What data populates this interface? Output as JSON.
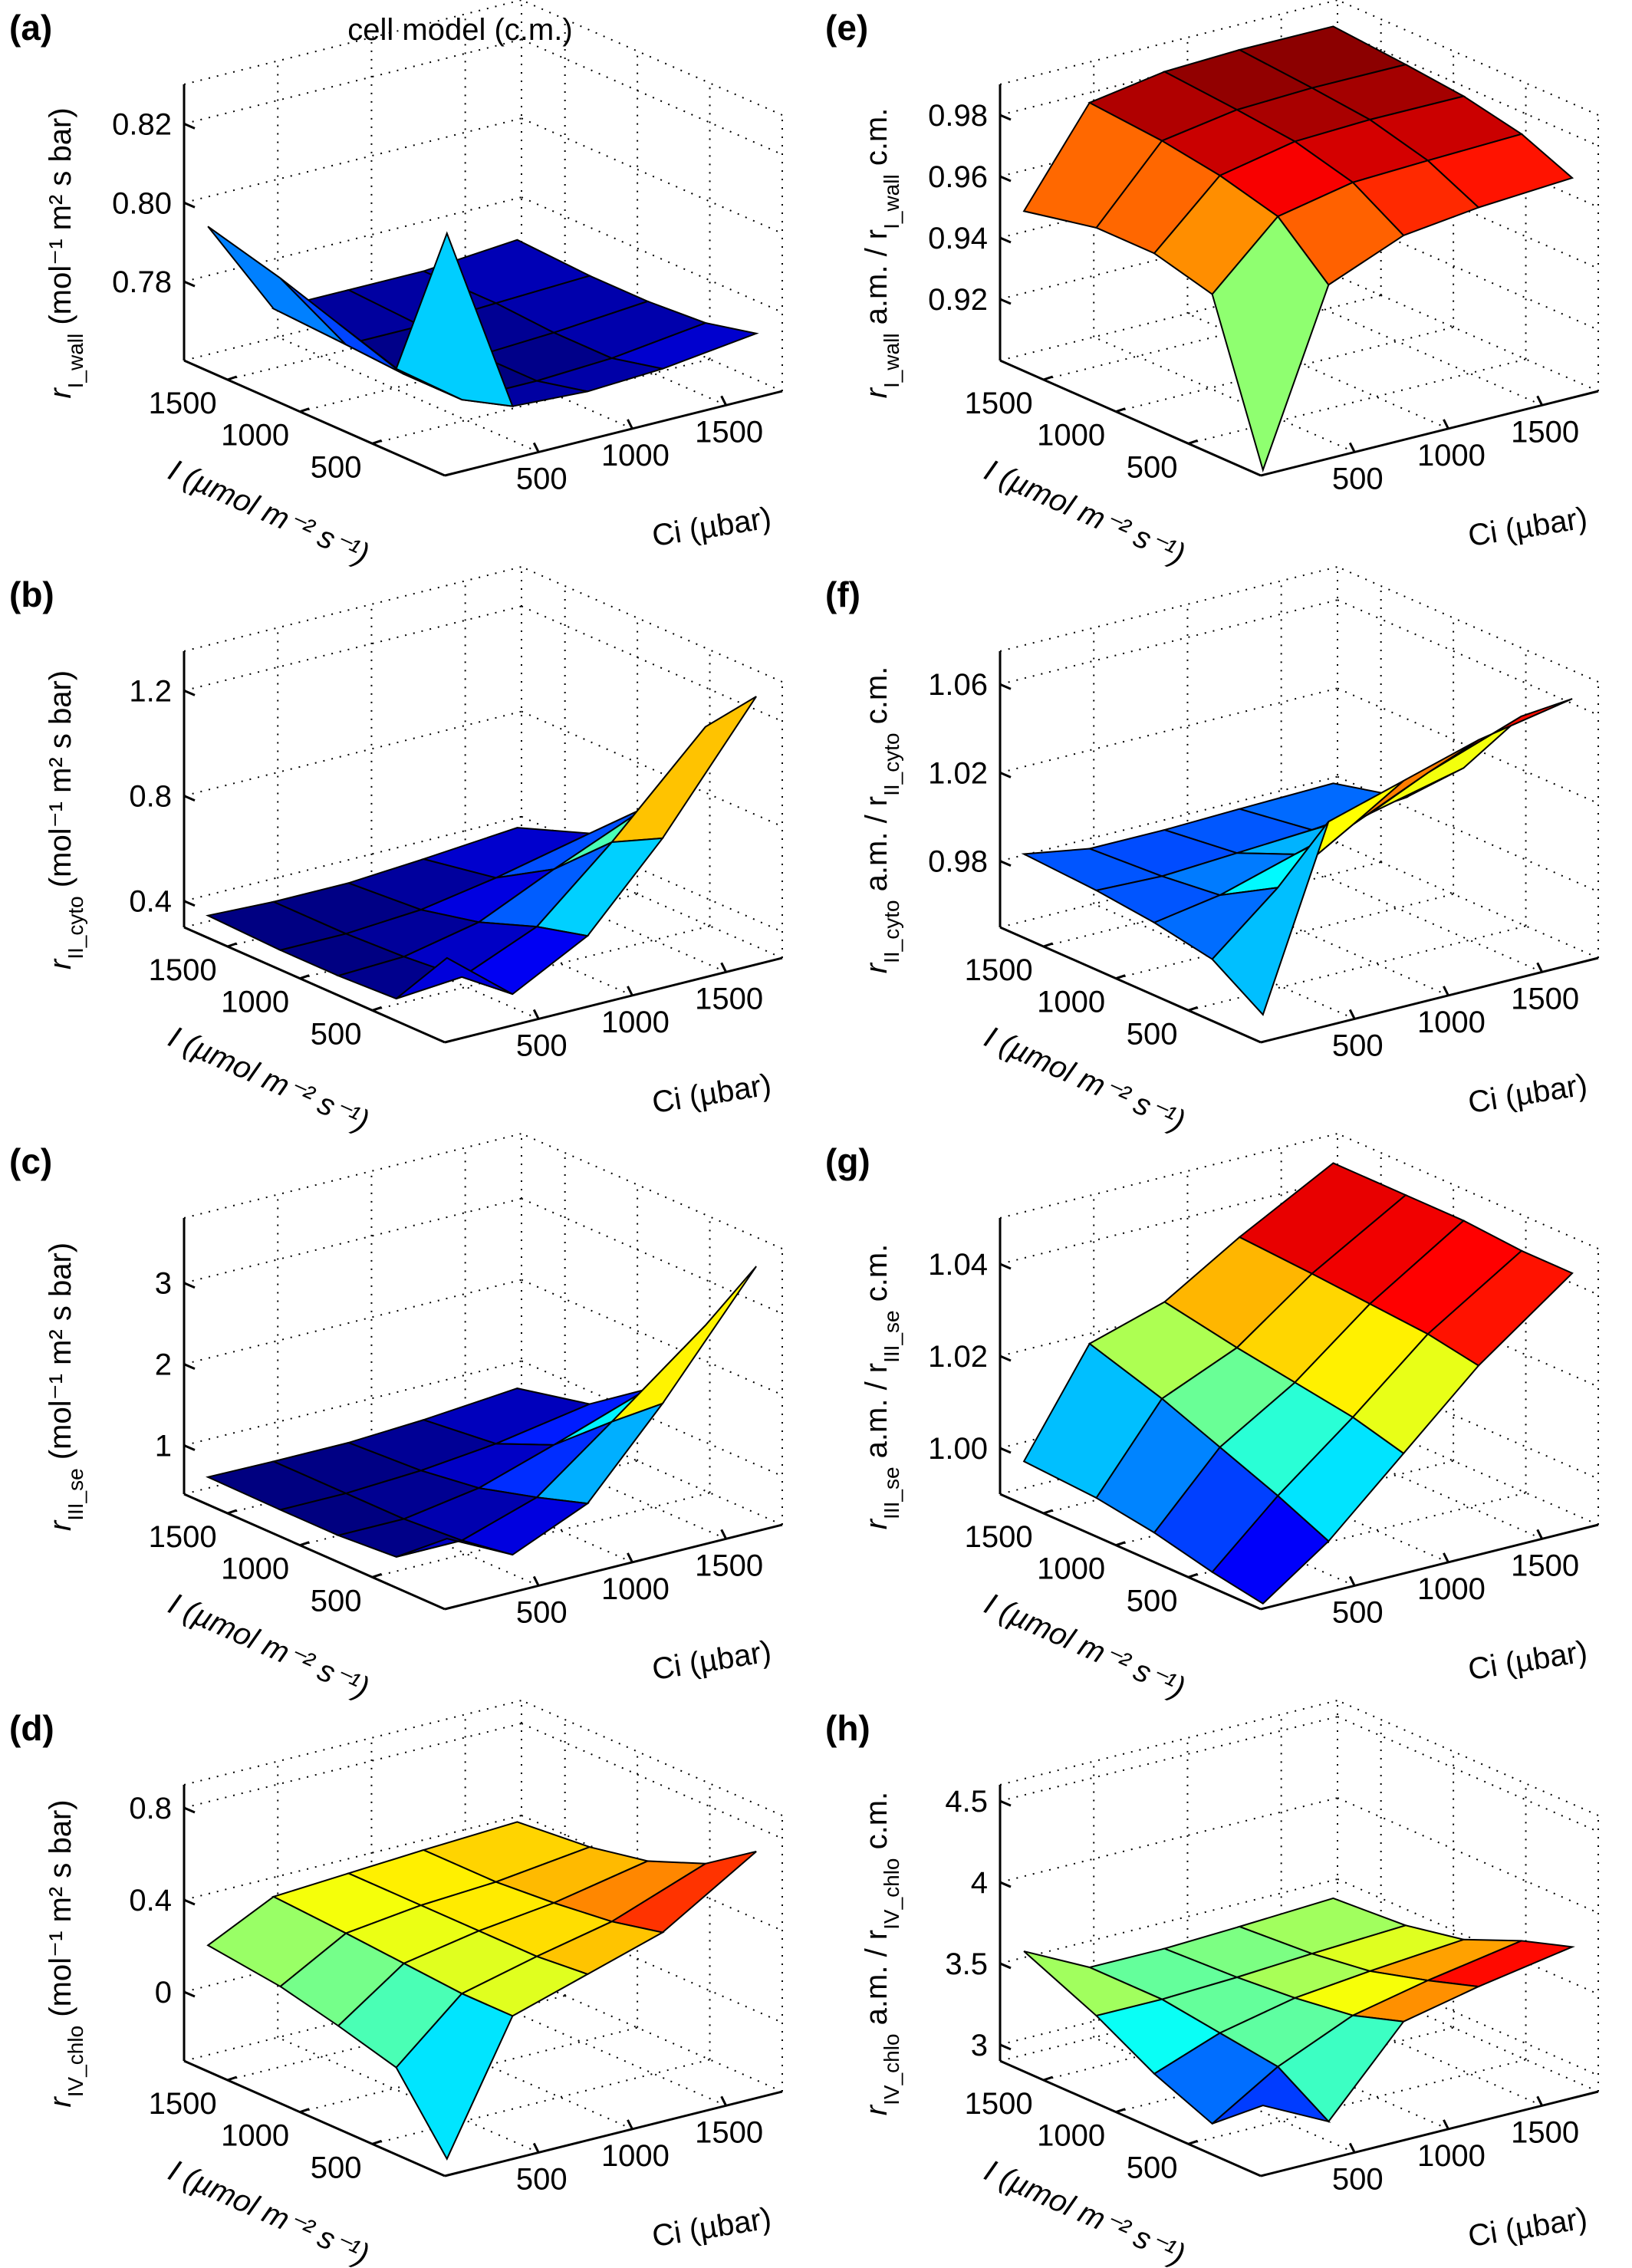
{
  "chart_data": [
    {
      "type": "surface",
      "panel": "(a)",
      "title": "cell model (c.m.)",
      "zlabel": [
        {
          "text": "r"
        },
        {
          "text": "I_wall",
          "sub": true
        },
        {
          "text": " (mol⁻¹ m² s bar)"
        }
      ],
      "xlabel": "Ci (µbar)",
      "ylabel": "I (µmol m⁻² s⁻¹)",
      "xlim": [
        0,
        1800
      ],
      "ylim": [
        0,
        1800
      ],
      "zlim": [
        0.76,
        0.83
      ],
      "xticks": [
        500,
        1000,
        1500
      ],
      "yticks": [
        500,
        1000,
        1500
      ],
      "zticks": [
        0.78,
        {
          "value": 0.8,
          "label": "0.80"
        },
        0.82
      ],
      "x": [
        50,
        400,
        800,
        1200,
        1700
      ],
      "y": [
        50,
        400,
        800,
        1200,
        1700
      ],
      "z": [
        [
          0.82,
          0.772,
          0.771,
          0.772,
          0.775
        ],
        [
          0.78,
          0.768,
          0.768,
          0.769,
          0.772
        ],
        [
          0.785,
          0.768,
          0.768,
          0.769,
          0.771
        ],
        [
          0.79,
          0.769,
          0.769,
          0.77,
          0.771
        ],
        [
          0.795,
          0.77,
          0.77,
          0.77,
          0.772
        ]
      ]
    },
    {
      "type": "surface",
      "panel": "(b)",
      "zlabel": [
        {
          "text": "r"
        },
        {
          "text": "II_cyto",
          "sub": true
        },
        {
          "text": " (mol⁻¹ m² s bar)"
        }
      ],
      "xlabel": "Ci (µbar)",
      "ylabel": "I (µmol m⁻² s⁻¹)",
      "xlim": [
        0,
        1800
      ],
      "ylim": [
        0,
        1800
      ],
      "zlim": [
        0.3,
        1.35
      ],
      "xticks": [
        500,
        1000,
        1500
      ],
      "yticks": [
        500,
        1000,
        1500
      ],
      "zticks": [
        0.4,
        0.8,
        1.2
      ],
      "x": [
        50,
        400,
        800,
        1200,
        1700
      ],
      "y": [
        50,
        400,
        800,
        1200,
        1700
      ],
      "z": [
        [
          0.6,
          0.4,
          0.55,
          0.85,
          1.3
        ],
        [
          0.36,
          0.38,
          0.5,
          0.75,
          1.1
        ],
        [
          0.35,
          0.36,
          0.42,
          0.55,
          0.7
        ],
        [
          0.35,
          0.35,
          0.37,
          0.42,
          0.5
        ],
        [
          0.36,
          0.35,
          0.35,
          0.37,
          0.4
        ]
      ]
    },
    {
      "type": "surface",
      "panel": "(c)",
      "zlabel": [
        {
          "text": "r"
        },
        {
          "text": "III_se",
          "sub": true
        },
        {
          "text": " (mol⁻¹ m² s bar)"
        }
      ],
      "xlabel": "Ci (µbar)",
      "ylabel": "I (µmol m⁻² s⁻¹)",
      "xlim": [
        0,
        1800
      ],
      "ylim": [
        0,
        1800
      ],
      "zlim": [
        0.4,
        3.8
      ],
      "xticks": [
        500,
        1000,
        1500
      ],
      "yticks": [
        500,
        1000,
        1500
      ],
      "zticks": [
        1,
        2,
        3
      ],
      "x": [
        50,
        400,
        800,
        1200,
        1700
      ],
      "y": [
        50,
        400,
        800,
        1200,
        1700
      ],
      "z": [
        [
          1.2,
          0.8,
          1.2,
          2.2,
          3.6
        ],
        [
          0.7,
          0.7,
          1.0,
          1.7,
          2.6
        ],
        [
          0.65,
          0.65,
          0.8,
          1.1,
          1.5
        ],
        [
          0.65,
          0.65,
          0.7,
          0.8,
          1.0
        ],
        [
          0.66,
          0.65,
          0.65,
          0.7,
          0.8
        ]
      ]
    },
    {
      "type": "surface",
      "panel": "(d)",
      "zlabel": [
        {
          "text": "r"
        },
        {
          "text": "IV_chlo",
          "sub": true
        },
        {
          "text": " (mol⁻¹ m² s bar)"
        }
      ],
      "xlabel": "Ci (µbar)",
      "ylabel": "I (µmol m⁻² s⁻¹)",
      "xlim": [
        0,
        1800
      ],
      "ylim": [
        0,
        1800
      ],
      "zlim": [
        -0.3,
        0.9
      ],
      "xticks": [
        500,
        1000,
        1500
      ],
      "yticks": [
        500,
        1000,
        1500
      ],
      "zticks": [
        0,
        0.4,
        0.8
      ],
      "x": [
        50,
        400,
        800,
        1200,
        1700
      ],
      "y": [
        50,
        400,
        800,
        1200,
        1700
      ],
      "z": [
        [
          -0.25,
          0.3,
          0.4,
          0.5,
          0.75
        ],
        [
          0.05,
          0.3,
          0.38,
          0.45,
          0.6
        ],
        [
          0.12,
          0.32,
          0.38,
          0.42,
          0.5
        ],
        [
          0.18,
          0.34,
          0.38,
          0.4,
          0.45
        ],
        [
          0.22,
          0.36,
          0.38,
          0.4,
          0.42
        ]
      ]
    },
    {
      "type": "surface",
      "panel": "(e)",
      "zlabel": [
        {
          "text": "r"
        },
        {
          "text": "I_wall",
          "sub": true
        },
        {
          "text": " a.m. / r"
        },
        {
          "text": "I_wall",
          "sub": true
        },
        {
          "text": " c.m."
        }
      ],
      "xlabel": "Ci (µbar)",
      "ylabel": "I (µmol m⁻² s⁻¹)",
      "xlim": [
        0,
        1800
      ],
      "ylim": [
        0,
        1800
      ],
      "zlim": [
        0.9,
        0.99
      ],
      "xticks": [
        500,
        1000,
        1500
      ],
      "yticks": [
        500,
        1000,
        1500
      ],
      "zticks": [
        0.92,
        0.94,
        0.96,
        0.98
      ],
      "x": [
        50,
        400,
        800,
        1200,
        1700
      ],
      "y": [
        50,
        400,
        800,
        1200,
        1700
      ],
      "z": [
        [
          0.9,
          0.955,
          0.965,
          0.968,
          0.97
        ],
        [
          0.95,
          0.97,
          0.975,
          0.976,
          0.977
        ],
        [
          0.955,
          0.975,
          0.98,
          0.981,
          0.981
        ],
        [
          0.955,
          0.978,
          0.982,
          0.983,
          0.983
        ],
        [
          0.95,
          0.98,
          0.984,
          0.985,
          0.985
        ]
      ]
    },
    {
      "type": "surface",
      "panel": "(f)",
      "zlabel": [
        {
          "text": "r"
        },
        {
          "text": "II_cyto",
          "sub": true
        },
        {
          "text": " a.m. / r"
        },
        {
          "text": "II_cyto",
          "sub": true
        },
        {
          "text": " c.m."
        }
      ],
      "xlabel": "Ci (µbar)",
      "ylabel": "I (µmol m⁻² s⁻¹)",
      "xlim": [
        0,
        1800
      ],
      "ylim": [
        0,
        1800
      ],
      "zlim": [
        0.95,
        1.075
      ],
      "xticks": [
        500,
        1000,
        1500
      ],
      "yticks": [
        500,
        1000,
        1500
      ],
      "zticks": [
        0.98,
        1.02,
        1.06
      ],
      "x": [
        50,
        400,
        800,
        1200,
        1700
      ],
      "y": [
        50,
        400,
        800,
        1200,
        1700
      ],
      "z": [
        [
          0.96,
          1.04,
          1.05,
          1.06,
          1.068
        ],
        [
          0.975,
          1.0,
          1.02,
          1.035,
          1.05
        ],
        [
          0.98,
          0.985,
          0.995,
          1.005,
          1.015
        ],
        [
          0.983,
          0.982,
          0.984,
          0.986,
          0.99
        ],
        [
          0.985,
          0.98,
          0.98,
          0.981,
          0.982
        ]
      ]
    },
    {
      "type": "surface",
      "panel": "(g)",
      "zlabel": [
        {
          "text": "r"
        },
        {
          "text": "III_se",
          "sub": true
        },
        {
          "text": " a.m. / r"
        },
        {
          "text": "III_se",
          "sub": true
        },
        {
          "text": " c.m."
        }
      ],
      "xlabel": "Ci (µbar)",
      "ylabel": "I (µmol m⁻² s⁻¹)",
      "xlim": [
        0,
        1800
      ],
      "ylim": [
        0,
        1800
      ],
      "zlim": [
        0.99,
        1.05
      ],
      "xticks": [
        500,
        1000,
        1500
      ],
      "yticks": [
        500,
        1000,
        1500
      ],
      "zticks": [
        {
          "value": 1,
          "label": "1.00"
        },
        1.02,
        1.04
      ],
      "x": [
        50,
        400,
        800,
        1200,
        1700
      ],
      "y": [
        50,
        400,
        800,
        1200,
        1700
      ],
      "z": [
        [
          0.99,
          1.0,
          1.015,
          1.03,
          1.045
        ],
        [
          0.992,
          1.005,
          1.018,
          1.032,
          1.045
        ],
        [
          0.995,
          1.01,
          1.02,
          1.033,
          1.046
        ],
        [
          0.997,
          1.015,
          1.022,
          1.034,
          1.046
        ],
        [
          0.998,
          1.02,
          1.025,
          1.035,
          1.046
        ]
      ]
    },
    {
      "type": "surface",
      "panel": "(h)",
      "zlabel": [
        {
          "text": "r"
        },
        {
          "text": "IV_chlo",
          "sub": true
        },
        {
          "text": " a.m. / r"
        },
        {
          "text": "IV_chlo",
          "sub": true
        },
        {
          "text": " c.m."
        }
      ],
      "xlabel": "Ci (µbar)",
      "ylabel": "I (µmol m⁻² s⁻¹)",
      "xlim": [
        0,
        1800
      ],
      "ylim": [
        0,
        1800
      ],
      "zlim": [
        2.9,
        4.6
      ],
      "xticks": [
        500,
        1000,
        1500
      ],
      "yticks": [
        500,
        1000,
        1500
      ],
      "zticks": [
        3,
        3.5,
        4,
        4.5
      ],
      "x": [
        50,
        400,
        800,
        1200,
        1700
      ],
      "y": [
        50,
        400,
        800,
        1200,
        1700
      ],
      "z": [
        [
          3.3,
          3.1,
          3.6,
          3.7,
          3.8
        ],
        [
          3.05,
          3.3,
          3.5,
          3.6,
          3.7
        ],
        [
          3.2,
          3.35,
          3.45,
          3.5,
          3.55
        ],
        [
          3.4,
          3.4,
          3.42,
          3.45,
          3.48
        ],
        [
          3.6,
          3.4,
          3.4,
          3.42,
          3.45
        ]
      ]
    }
  ]
}
